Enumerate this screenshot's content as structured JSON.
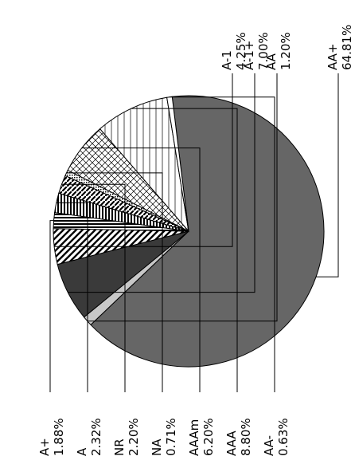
{
  "chart_data": {
    "type": "pie",
    "title": "",
    "slices": [
      {
        "label": "AA+",
        "value": 64.81,
        "pct": "64.81%",
        "fill": "solid",
        "color": "#666666"
      },
      {
        "label": "AA",
        "value": 1.2,
        "pct": "1.20%",
        "fill": "solid",
        "color": "#c8c8c8"
      },
      {
        "label": "A-1+",
        "value": 7.0,
        "pct": "7.00%",
        "fill": "solid",
        "color": "#3a3a3a"
      },
      {
        "label": "A-1",
        "value": 4.25,
        "pct": "4.25%",
        "fill": "diag",
        "color": "#000000"
      },
      {
        "label": "A+",
        "value": 1.88,
        "pct": "1.88%",
        "fill": "hstripe",
        "color": "#000000"
      },
      {
        "label": "A",
        "value": 2.32,
        "pct": "2.32%",
        "fill": "vstripe",
        "color": "#000000"
      },
      {
        "label": "NR",
        "value": 2.2,
        "pct": "2.20%",
        "fill": "zigzag",
        "color": "#000000"
      },
      {
        "label": "NA",
        "value": 0.71,
        "pct": "0.71%",
        "fill": "dots",
        "color": "#000000"
      },
      {
        "label": "AAAm",
        "value": 6.2,
        "pct": "6.20%",
        "fill": "crosshatch",
        "color": "#000000"
      },
      {
        "label": "AAA",
        "value": 8.8,
        "pct": "8.80%",
        "fill": "hlines",
        "color": "#000000"
      },
      {
        "label": "AA-",
        "value": 0.63,
        "pct": "0.63%",
        "fill": "solid",
        "color": "#ffffff"
      }
    ]
  }
}
